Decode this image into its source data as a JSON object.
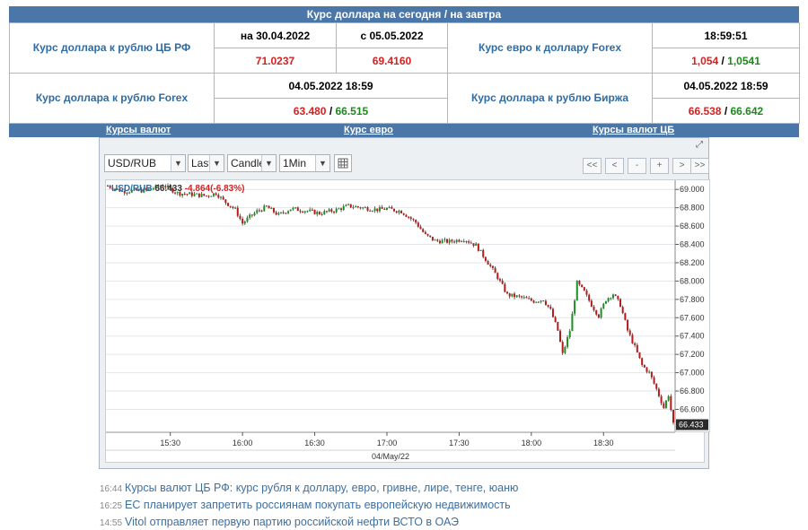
{
  "header": {
    "title": "Курс доллара на сегодня / на завтра"
  },
  "rates": {
    "cb": {
      "label": "Курс доллара к рублю ЦБ РФ",
      "date1": "на 30.04.2022",
      "date2": "с 05.05.2022",
      "value1": "71.0237",
      "value2": "69.4160"
    },
    "forex": {
      "label": "Курс доллара к рублю Forex",
      "datetime": "04.05.2022 18:59",
      "bid": "63.480",
      "ask": "66.515"
    },
    "eur": {
      "label": "Курс евро к доллару Forex",
      "time": "18:59:51",
      "bid": "1,054",
      "ask": "1,0541"
    },
    "birzha": {
      "label": "Курс доллара к рублю Биржа",
      "datetime": "04.05.2022 18:59",
      "bid": "66.538",
      "ask": "66.642"
    },
    "separator": " / "
  },
  "nav": {
    "links": [
      "Курсы валют",
      "Курс евро",
      "Курсы валют ЦБ"
    ]
  },
  "widget": {
    "expand_icon": "expand-icon",
    "controls": {
      "symbol": "USD/RUB",
      "field": "Last",
      "chart_type": "Candle",
      "interval": "1Min",
      "settings_icon": "table-icon",
      "arrow_icon": "▼"
    },
    "nav_buttons": [
      "<<",
      "<",
      "-",
      "+",
      ">",
      ">>"
    ],
    "legend": {
      "symbol": "USD/RUB",
      "last": "66.433",
      "change": "-4.864(-6.83%)"
    },
    "date_label": "04/May/22"
  },
  "chart_data": {
    "type": "candlestick",
    "symbol": "USD/RUB",
    "ylim": [
      66.36,
      69.1
    ],
    "yticks": [
      "69.000",
      "68.800",
      "68.600",
      "68.400",
      "68.200",
      "68.000",
      "67.800",
      "67.600",
      "67.400",
      "67.200",
      "67.000",
      "66.800",
      "66.600"
    ],
    "last_price_label": "66.433",
    "xticks": [
      "15:30",
      "16:00",
      "16:30",
      "17:00",
      "17:30",
      "18:00",
      "18:30"
    ],
    "xlabel": "04/May/22",
    "colors": {
      "up": "#1d8f22",
      "down": "#b51a1a",
      "grid": "#e3e6ea",
      "last_bg": "#2a2a2a"
    },
    "series": [
      {
        "time": "15:04",
        "price": 69.04
      },
      {
        "time": "15:10",
        "price": 68.98
      },
      {
        "time": "15:20",
        "price": 68.99
      },
      {
        "time": "15:27",
        "price": 69.05
      },
      {
        "time": "15:33",
        "price": 68.96
      },
      {
        "time": "15:45",
        "price": 68.93
      },
      {
        "time": "15:49",
        "price": 68.96
      },
      {
        "time": "15:52",
        "price": 68.88
      },
      {
        "time": "15:57",
        "price": 68.78
      },
      {
        "time": "16:00",
        "price": 68.63
      },
      {
        "time": "16:03",
        "price": 68.7
      },
      {
        "time": "16:06",
        "price": 68.76
      },
      {
        "time": "16:10",
        "price": 68.81
      },
      {
        "time": "16:15",
        "price": 68.72
      },
      {
        "time": "16:20",
        "price": 68.79
      },
      {
        "time": "16:26",
        "price": 68.77
      },
      {
        "time": "16:32",
        "price": 68.74
      },
      {
        "time": "16:38",
        "price": 68.77
      },
      {
        "time": "16:44",
        "price": 68.82
      },
      {
        "time": "16:50",
        "price": 68.8
      },
      {
        "time": "16:56",
        "price": 68.78
      },
      {
        "time": "17:00",
        "price": 68.79
      },
      {
        "time": "17:06",
        "price": 68.76
      },
      {
        "time": "17:12",
        "price": 68.64
      },
      {
        "time": "17:16",
        "price": 68.5
      },
      {
        "time": "17:20",
        "price": 68.44
      },
      {
        "time": "17:26",
        "price": 68.43
      },
      {
        "time": "17:32",
        "price": 68.46
      },
      {
        "time": "17:37",
        "price": 68.39
      },
      {
        "time": "17:42",
        "price": 68.2
      },
      {
        "time": "17:46",
        "price": 68.04
      },
      {
        "time": "17:50",
        "price": 67.85
      },
      {
        "time": "17:56",
        "price": 67.82
      },
      {
        "time": "18:01",
        "price": 67.78
      },
      {
        "time": "18:05",
        "price": 67.8
      },
      {
        "time": "18:08",
        "price": 67.68
      },
      {
        "time": "18:11",
        "price": 67.46
      },
      {
        "time": "18:13",
        "price": 67.2
      },
      {
        "time": "18:16",
        "price": 67.46
      },
      {
        "time": "18:19",
        "price": 67.98
      },
      {
        "time": "18:22",
        "price": 67.88
      },
      {
        "time": "18:25",
        "price": 67.74
      },
      {
        "time": "18:28",
        "price": 67.62
      },
      {
        "time": "18:31",
        "price": 67.8
      },
      {
        "time": "18:34",
        "price": 67.86
      },
      {
        "time": "18:37",
        "price": 67.74
      },
      {
        "time": "18:40",
        "price": 67.46
      },
      {
        "time": "18:43",
        "price": 67.28
      },
      {
        "time": "18:46",
        "price": 67.08
      },
      {
        "time": "18:49",
        "price": 67.0
      },
      {
        "time": "18:52",
        "price": 66.82
      },
      {
        "time": "18:55",
        "price": 66.62
      },
      {
        "time": "18:57",
        "price": 66.76
      },
      {
        "time": "18:59",
        "price": 66.433
      }
    ]
  },
  "news": [
    {
      "time": "16:44",
      "headline": "Курсы валют ЦБ РФ: курс рубля к доллару, евро, гривне, лире, тенге, юаню"
    },
    {
      "time": "16:25",
      "headline": "ЕС планирует запретить россиянам покупать европейскую недвижимость"
    },
    {
      "time": "14:55",
      "headline": "Vitol отправляет первую партию российской нефти ВСТО в ОАЭ"
    }
  ]
}
